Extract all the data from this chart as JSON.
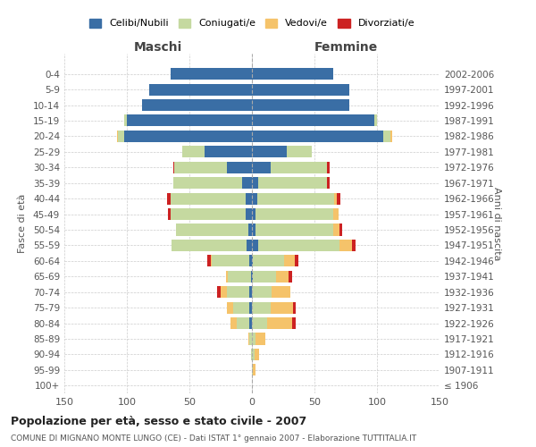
{
  "age_groups": [
    "100+",
    "95-99",
    "90-94",
    "85-89",
    "80-84",
    "75-79",
    "70-74",
    "65-69",
    "60-64",
    "55-59",
    "50-54",
    "45-49",
    "40-44",
    "35-39",
    "30-34",
    "25-29",
    "20-24",
    "15-19",
    "10-14",
    "5-9",
    "0-4"
  ],
  "birth_years": [
    "≤ 1906",
    "1907-1911",
    "1912-1916",
    "1917-1921",
    "1922-1926",
    "1927-1931",
    "1932-1936",
    "1937-1941",
    "1942-1946",
    "1947-1951",
    "1952-1956",
    "1957-1961",
    "1962-1966",
    "1967-1971",
    "1972-1976",
    "1977-1981",
    "1982-1986",
    "1987-1991",
    "1992-1996",
    "1997-2001",
    "2002-2006"
  ],
  "male": {
    "celibi": [
      0,
      0,
      0,
      0,
      2,
      2,
      2,
      1,
      2,
      4,
      3,
      5,
      5,
      8,
      20,
      38,
      102,
      100,
      88,
      82,
      65
    ],
    "coniugati": [
      0,
      0,
      1,
      2,
      10,
      13,
      18,
      18,
      30,
      60,
      58,
      60,
      60,
      55,
      42,
      18,
      5,
      2,
      0,
      0,
      0
    ],
    "vedovi": [
      0,
      0,
      0,
      1,
      5,
      5,
      5,
      2,
      1,
      0,
      0,
      0,
      0,
      0,
      0,
      0,
      1,
      0,
      0,
      0,
      0
    ],
    "divorziati": [
      0,
      0,
      0,
      0,
      0,
      0,
      3,
      0,
      3,
      0,
      0,
      2,
      3,
      0,
      1,
      0,
      0,
      0,
      0,
      0,
      0
    ]
  },
  "female": {
    "nubili": [
      0,
      0,
      0,
      0,
      0,
      0,
      0,
      1,
      1,
      5,
      3,
      3,
      4,
      5,
      15,
      28,
      105,
      98,
      78,
      78,
      65
    ],
    "coniugate": [
      0,
      1,
      2,
      3,
      12,
      15,
      16,
      18,
      25,
      65,
      62,
      62,
      62,
      55,
      45,
      20,
      6,
      2,
      0,
      0,
      0
    ],
    "vedove": [
      0,
      2,
      4,
      8,
      20,
      18,
      15,
      10,
      8,
      10,
      5,
      4,
      2,
      0,
      0,
      0,
      1,
      0,
      0,
      0,
      0
    ],
    "divorziate": [
      0,
      0,
      0,
      0,
      3,
      2,
      0,
      3,
      3,
      3,
      2,
      0,
      3,
      2,
      2,
      0,
      0,
      0,
      0,
      0,
      0
    ]
  },
  "colors": {
    "celibi": "#3a6ea5",
    "coniugati": "#c5d9a0",
    "vedovi": "#f5c36a",
    "divorziati": "#cc2222"
  },
  "title": "Popolazione per età, sesso e stato civile - 2007",
  "subtitle": "COMUNE DI MIGNANO MONTE LUNGO (CE) - Dati ISTAT 1° gennaio 2007 - Elaborazione TUTTITALIA.IT",
  "xlabel_left": "Maschi",
  "xlabel_right": "Femmine",
  "ylabel_left": "Fasce di età",
  "ylabel_right": "Anni di nascita",
  "xlim": 150,
  "bg_color": "#ffffff",
  "grid_color": "#cccccc",
  "legend_labels": [
    "Celibi/Nubili",
    "Coniugati/e",
    "Vedovi/e",
    "Divorziati/e"
  ]
}
